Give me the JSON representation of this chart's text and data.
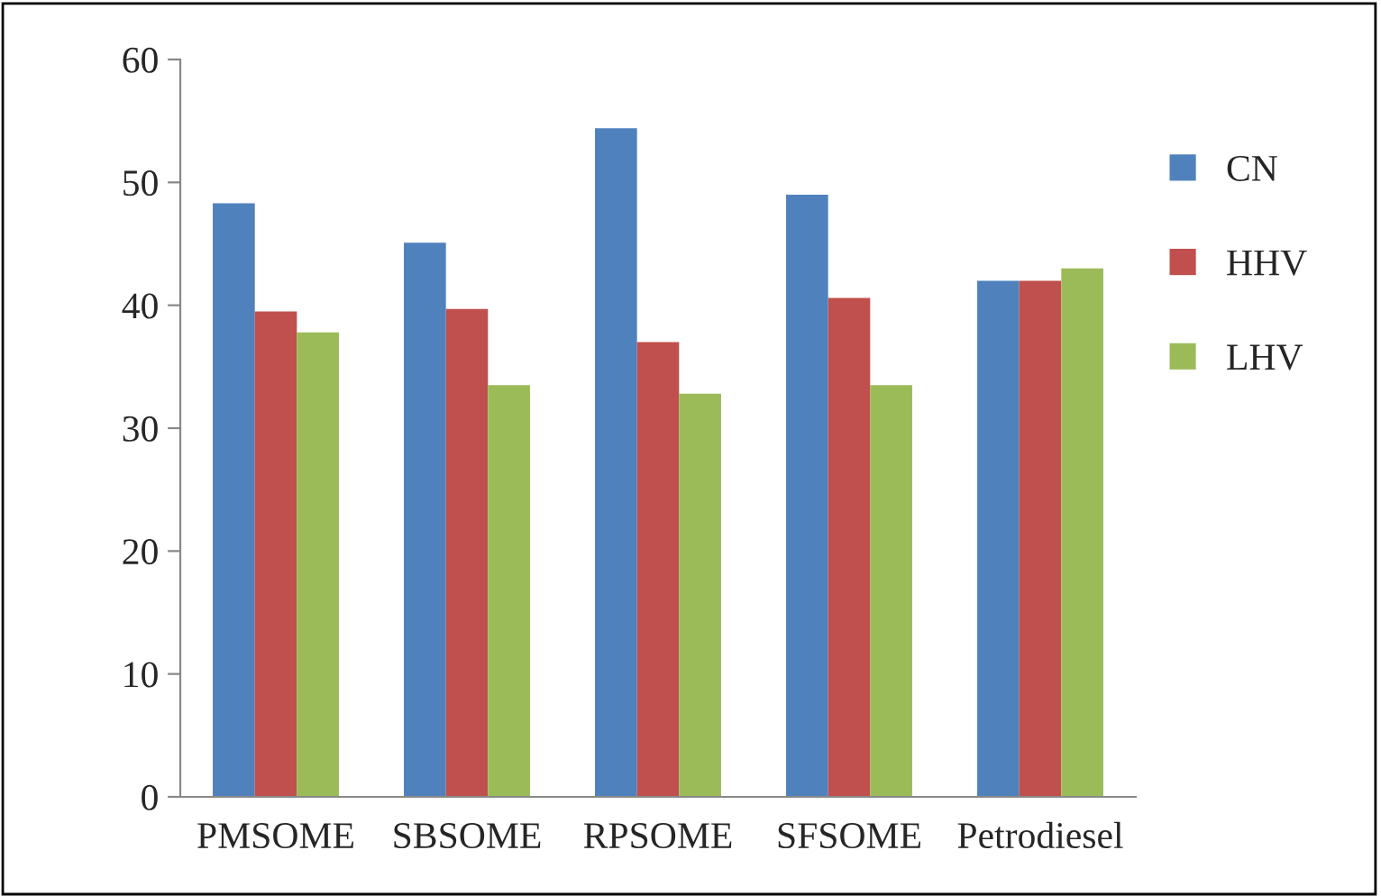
{
  "chart_data": {
    "type": "bar",
    "categories": [
      "PMSOME",
      "SBSOME",
      "RPSOME",
      "SFSOME",
      "Petrodiesel"
    ],
    "series": [
      {
        "name": "CN",
        "color": "#4f81bd",
        "values": [
          48.3,
          45.1,
          54.4,
          49.0,
          42.0
        ]
      },
      {
        "name": "HHV",
        "color": "#c0504d",
        "values": [
          39.5,
          39.7,
          37.0,
          40.6,
          42.0
        ]
      },
      {
        "name": "LHV",
        "color": "#9bbb59",
        "values": [
          37.8,
          33.5,
          32.8,
          33.5,
          43.0
        ]
      }
    ],
    "ylim": [
      0,
      60
    ],
    "yticks": [
      0,
      10,
      20,
      30,
      40,
      50,
      60
    ],
    "grid": false,
    "legend": "right"
  }
}
